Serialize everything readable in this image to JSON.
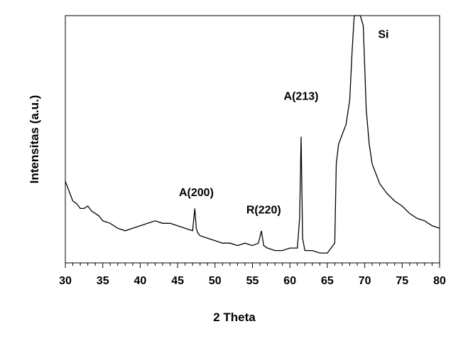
{
  "chart_data": {
    "type": "line",
    "title": "",
    "xlabel": "2 Theta",
    "ylabel": "Intensitas (a.u.)",
    "xlim": [
      30,
      80
    ],
    "ylim": [
      0,
      100
    ],
    "xticks": [
      "30",
      "35",
      "40",
      "45",
      "50",
      "55",
      "60",
      "65",
      "70",
      "75",
      "80"
    ],
    "grid": false,
    "legend": "none",
    "line_color": "#000000",
    "series": [
      {
        "x": [
          30,
          30.5,
          31,
          31.5,
          32,
          32.5,
          33,
          33.5,
          34,
          34.5,
          35,
          36,
          37,
          38,
          39,
          40,
          41,
          42,
          43,
          44,
          45,
          46,
          47,
          47.3,
          47.5,
          47.7,
          48,
          49,
          50,
          51,
          52,
          53,
          54,
          55,
          55.8,
          56.2,
          56.5,
          57,
          58,
          59,
          60,
          61,
          61.3,
          61.5,
          61.7,
          62,
          63,
          64,
          65,
          66,
          66.2,
          66.5,
          67,
          67.5,
          68,
          68.3,
          68.6,
          69,
          69.4,
          69.8,
          70.2,
          70.6,
          71,
          71.5,
          72,
          73,
          74,
          75,
          76,
          77,
          78,
          79,
          80
        ],
        "y": [
          33,
          29,
          25,
          24,
          22,
          22,
          23,
          21,
          20,
          19,
          17,
          16,
          14,
          13,
          14,
          15,
          16,
          17,
          16,
          16,
          15,
          14,
          13,
          22,
          14,
          12,
          11,
          10,
          9,
          8,
          8,
          7,
          8,
          7,
          8,
          13,
          7,
          6,
          5,
          5,
          6,
          6,
          18,
          51,
          10,
          5,
          5,
          4,
          4,
          8,
          40,
          48,
          52,
          56,
          66,
          85,
          100,
          100,
          100,
          96,
          62,
          48,
          40,
          36,
          32,
          28,
          25,
          23,
          20,
          18,
          17,
          15,
          14
        ]
      }
    ],
    "annotations": [
      {
        "text": "A(200)",
        "x": 47.5,
        "y": 27
      },
      {
        "text": "R(220)",
        "x": 56.5,
        "y": 20
      },
      {
        "text": "A(213)",
        "x": 61.5,
        "y": 66
      },
      {
        "text": "Si",
        "x": 72.5,
        "y": 91
      }
    ]
  }
}
